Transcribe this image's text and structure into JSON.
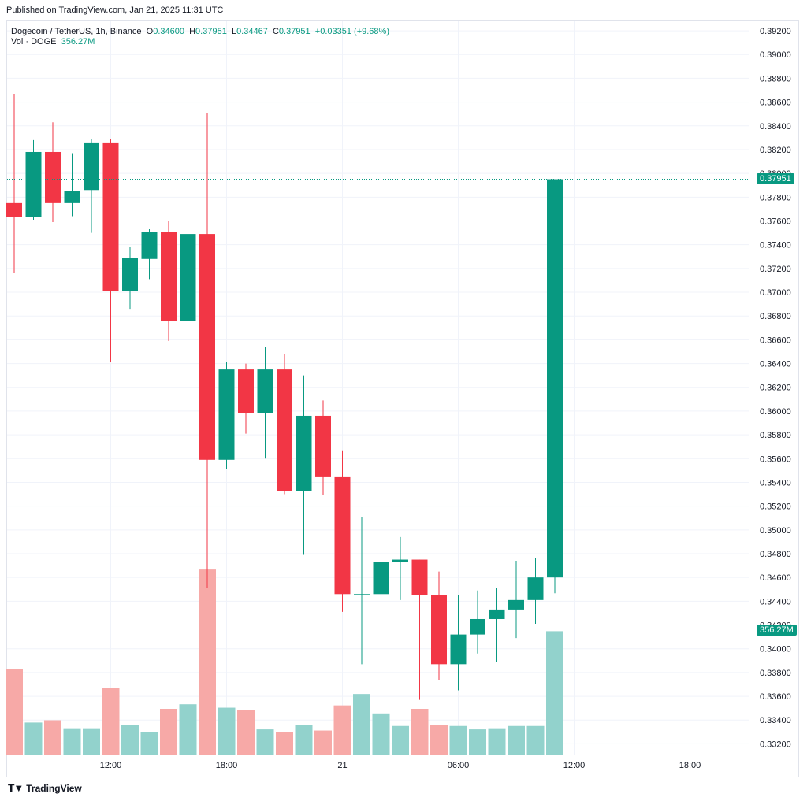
{
  "header": {
    "published": "Published on TradingView.com, Jan 21, 2025 11:31 UTC"
  },
  "legend": {
    "symbol": "Dogecoin / TetherUS, 1h, Binance",
    "o_label": "O",
    "o_value": "0.34600",
    "h_label": "H",
    "h_value": "0.37951",
    "l_label": "L",
    "l_value": "0.34467",
    "c_label": "C",
    "c_value": "0.37951",
    "change": "+0.03351 (+9.68%)",
    "vol_label": "Vol · DOGE",
    "vol_value": "356.27M"
  },
  "footer": {
    "brand": "TradingView",
    "brand_icon": "tradingview-logo-icon"
  },
  "colors": {
    "up": "#089981",
    "down": "#f23645",
    "up_vol": "#92d2cc",
    "down_vol": "#f7a9a7",
    "grid": "#f0f3fa",
    "axis_text": "#131722"
  },
  "chart_data": {
    "type": "candlestick",
    "symbol": "Dogecoin / TetherUS",
    "interval": "1h",
    "exchange": "Binance",
    "y_axis": {
      "ticks": [
        "0.39200",
        "0.39000",
        "0.38800",
        "0.38600",
        "0.38400",
        "0.38200",
        "0.38000",
        "0.37800",
        "0.37600",
        "0.37400",
        "0.37200",
        "0.37000",
        "0.36800",
        "0.36600",
        "0.36400",
        "0.36200",
        "0.36000",
        "0.35800",
        "0.35600",
        "0.35400",
        "0.35200",
        "0.35000",
        "0.34800",
        "0.34600",
        "0.34400",
        "0.34200",
        "0.34000",
        "0.33800",
        "0.33600",
        "0.33400",
        "0.33200"
      ],
      "ylim": [
        0.3311,
        0.3928
      ]
    },
    "x_axis": {
      "ticks": [
        {
          "label": "12:00",
          "index": 5
        },
        {
          "label": "18:00",
          "index": 11
        },
        {
          "label": "21",
          "index": 17
        },
        {
          "label": "06:00",
          "index": 23
        },
        {
          "label": "12:00",
          "index": 29
        },
        {
          "label": "18:00",
          "index": 35
        }
      ]
    },
    "last_price_label": "0.37951",
    "volume_label": "356.27M",
    "candles": [
      {
        "o": 0.3775,
        "h": 0.3867,
        "l": 0.3716,
        "c": 0.3763,
        "v": 75
      },
      {
        "o": 0.3763,
        "h": 0.3828,
        "l": 0.3761,
        "c": 0.3818,
        "v": 28
      },
      {
        "o": 0.3818,
        "h": 0.3843,
        "l": 0.3759,
        "c": 0.3775,
        "v": 30
      },
      {
        "o": 0.3775,
        "h": 0.3817,
        "l": 0.3764,
        "c": 0.3785,
        "v": 23
      },
      {
        "o": 0.3786,
        "h": 0.3829,
        "l": 0.375,
        "c": 0.3826,
        "v": 23
      },
      {
        "o": 0.3826,
        "h": 0.3829,
        "l": 0.3641,
        "c": 0.3701,
        "v": 58
      },
      {
        "o": 0.3701,
        "h": 0.3738,
        "l": 0.3686,
        "c": 0.3729,
        "v": 26
      },
      {
        "o": 0.3728,
        "h": 0.3753,
        "l": 0.3711,
        "c": 0.3751,
        "v": 20
      },
      {
        "o": 0.3751,
        "h": 0.376,
        "l": 0.3659,
        "c": 0.3676,
        "v": 40
      },
      {
        "o": 0.3676,
        "h": 0.376,
        "l": 0.3606,
        "c": 0.3749,
        "v": 44
      },
      {
        "o": 0.3749,
        "h": 0.3851,
        "l": 0.3451,
        "c": 0.3559,
        "v": 162
      },
      {
        "o": 0.3559,
        "h": 0.3641,
        "l": 0.3551,
        "c": 0.3635,
        "v": 41
      },
      {
        "o": 0.3635,
        "h": 0.364,
        "l": 0.3581,
        "c": 0.3598,
        "v": 39
      },
      {
        "o": 0.3598,
        "h": 0.3654,
        "l": 0.356,
        "c": 0.3635,
        "v": 22
      },
      {
        "o": 0.3635,
        "h": 0.3648,
        "l": 0.353,
        "c": 0.3533,
        "v": 20
      },
      {
        "o": 0.3533,
        "h": 0.363,
        "l": 0.3479,
        "c": 0.3596,
        "v": 26
      },
      {
        "o": 0.3596,
        "h": 0.3609,
        "l": 0.3529,
        "c": 0.3545,
        "v": 21
      },
      {
        "o": 0.3545,
        "h": 0.3567,
        "l": 0.3431,
        "c": 0.3446,
        "v": 43
      },
      {
        "o": 0.3446,
        "h": 0.3511,
        "l": 0.3387,
        "c": 0.3446,
        "v": 53
      },
      {
        "o": 0.3446,
        "h": 0.3475,
        "l": 0.3391,
        "c": 0.3473,
        "v": 36
      },
      {
        "o": 0.3473,
        "h": 0.3494,
        "l": 0.3441,
        "c": 0.3475,
        "v": 25
      },
      {
        "o": 0.3475,
        "h": 0.3475,
        "l": 0.3357,
        "c": 0.3445,
        "v": 40
      },
      {
        "o": 0.3445,
        "h": 0.3465,
        "l": 0.3374,
        "c": 0.3387,
        "v": 26
      },
      {
        "o": 0.3387,
        "h": 0.3445,
        "l": 0.3365,
        "c": 0.3412,
        "v": 25
      },
      {
        "o": 0.3412,
        "h": 0.3449,
        "l": 0.3396,
        "c": 0.3425,
        "v": 22
      },
      {
        "o": 0.3425,
        "h": 0.3451,
        "l": 0.3389,
        "c": 0.3433,
        "v": 23
      },
      {
        "o": 0.3433,
        "h": 0.3474,
        "l": 0.3409,
        "c": 0.3441,
        "v": 25
      },
      {
        "o": 0.3441,
        "h": 0.3476,
        "l": 0.3421,
        "c": 0.346,
        "v": 25
      },
      {
        "o": 0.346,
        "h": 0.37951,
        "l": 0.34467,
        "c": 0.37951,
        "v": 108
      }
    ]
  }
}
